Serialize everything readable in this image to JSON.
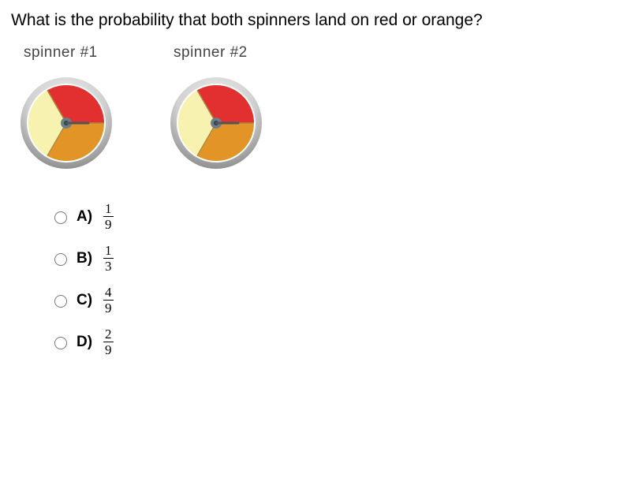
{
  "question": "What is the probability that both spinners land on red or orange?",
  "spinners": [
    {
      "label": "spinner #1",
      "slices": [
        {
          "start": -30,
          "end": 90,
          "color": "#e22f2f"
        },
        {
          "start": 90,
          "end": 210,
          "color": "#e39427"
        },
        {
          "start": 210,
          "end": 330,
          "color": "#f7f2b0"
        }
      ],
      "hub_color": "#6b7f8a",
      "rim_inner": "#cfcfcf",
      "rim_outer": "#a9a9a9",
      "pointer_color": "#555",
      "divider_color": "#b08a40"
    },
    {
      "label": "spinner #2",
      "slices": [
        {
          "start": -30,
          "end": 90,
          "color": "#e22f2f"
        },
        {
          "start": 90,
          "end": 210,
          "color": "#e39427"
        },
        {
          "start": 210,
          "end": 330,
          "color": "#f7f2b0"
        }
      ],
      "hub_color": "#6b7f8a",
      "rim_inner": "#cfcfcf",
      "rim_outer": "#a9a9a9",
      "pointer_color": "#555",
      "divider_color": "#b08a40"
    }
  ],
  "answers": [
    {
      "letter": "A)",
      "num": "1",
      "den": "9"
    },
    {
      "letter": "B)",
      "num": "1",
      "den": "3"
    },
    {
      "letter": "C)",
      "num": "4",
      "den": "9"
    },
    {
      "letter": "D)",
      "num": "2",
      "den": "9"
    }
  ]
}
